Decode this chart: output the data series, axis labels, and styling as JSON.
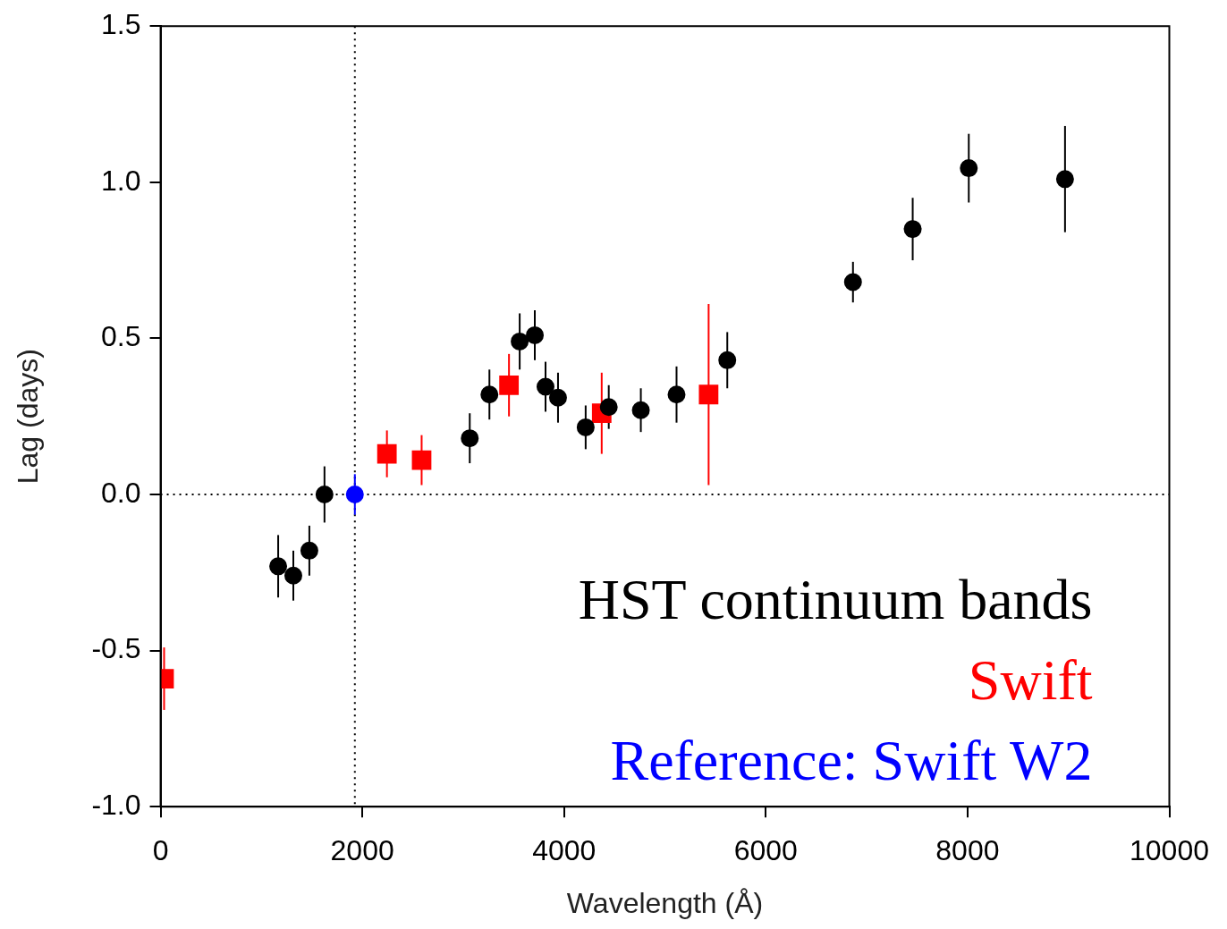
{
  "chart_data": {
    "type": "scatter",
    "xlabel": "Wavelength (Å)",
    "ylabel": "Lag (days)",
    "xlim": [
      0,
      10000
    ],
    "ylim": [
      -1.0,
      1.5
    ],
    "xticks": [
      0,
      2000,
      4000,
      6000,
      8000,
      10000
    ],
    "yticks": [
      {
        "value": -1.0,
        "label": "-1.0"
      },
      {
        "value": -0.5,
        "label": "-0.5"
      },
      {
        "value": 0.0,
        "label": "0.0"
      },
      {
        "value": 0.5,
        "label": "0.5"
      },
      {
        "value": 1.0,
        "label": "1.0"
      },
      {
        "value": 1.5,
        "label": "1.5"
      }
    ],
    "grid": false,
    "legend": "bottom right",
    "series": [
      {
        "name": "HST continuum bands",
        "color": "#000000",
        "marker": "circle",
        "x": [
          1166,
          1316,
          1475,
          1625,
          3065,
          3260,
          3560,
          3710,
          3816,
          3940,
          4214,
          4443,
          4761,
          5115,
          5618,
          6864,
          7456,
          8012,
          8966
        ],
        "values": [
          -0.23,
          -0.26,
          -0.18,
          0.0,
          0.18,
          0.32,
          0.49,
          0.51,
          0.345,
          0.31,
          0.215,
          0.28,
          0.27,
          0.32,
          0.43,
          0.68,
          0.85,
          1.045,
          1.01
        ],
        "errors": [
          0.1,
          0.08,
          0.08,
          0.09,
          0.08,
          0.08,
          0.09,
          0.08,
          0.08,
          0.08,
          0.07,
          0.07,
          0.07,
          0.09,
          0.09,
          0.065,
          0.1,
          0.11,
          0.17
        ]
      },
      {
        "name": "Swift",
        "color": "#ff0000",
        "marker": "square",
        "x": [
          35,
          2244,
          2588,
          3454,
          4373,
          5433
        ],
        "values": [
          -0.59,
          0.13,
          0.11,
          0.35,
          0.26,
          0.32
        ],
        "errors": [
          0.1,
          0.075,
          0.08,
          0.1,
          0.13,
          0.29
        ]
      },
      {
        "name": "Reference: Swift W2",
        "color": "#0000ff",
        "marker": "circle",
        "x": [
          1926
        ],
        "values": [
          0.0
        ],
        "errors": [
          0.065
        ]
      }
    ],
    "ref_lines": [
      {
        "axis": "x",
        "value": 1926,
        "line_style": "dotted",
        "color": "#000000"
      },
      {
        "axis": "y",
        "value": 0,
        "line_style": "dotted",
        "color": "#000000"
      }
    ]
  }
}
